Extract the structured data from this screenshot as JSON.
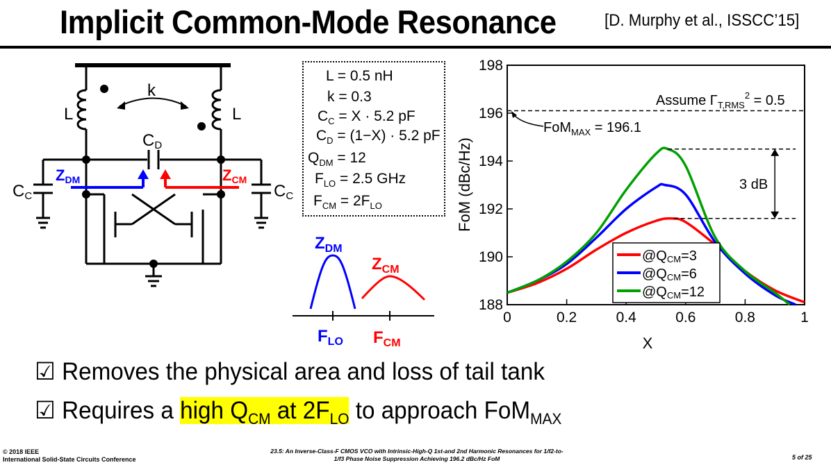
{
  "slide": {
    "title": "Implicit Common-Mode Resonance",
    "reference": "[D. Murphy et al., ISSCC’15]"
  },
  "circuit": {
    "inductor_left": "L",
    "inductor_right": "L",
    "coupling": "k",
    "cap_d": {
      "main": "C",
      "sub": "D"
    },
    "cap_left": {
      "main": "C",
      "sub": "C"
    },
    "cap_right": {
      "main": "C",
      "sub": "C"
    },
    "z_dm": {
      "main": "Z",
      "sub": "DM"
    },
    "z_cm": {
      "main": "Z",
      "sub": "CM"
    },
    "colors": {
      "dm": "#0000ff",
      "cm": "#ff0000"
    }
  },
  "params": {
    "l": "L = 0.5 nH",
    "k": "k = 0.3",
    "cc": {
      "pre": "C",
      "sub": "C",
      "post": " = X ·  5.2 pF"
    },
    "cd": {
      "pre": "C",
      "sub": "D",
      "post": " = (1−X) · 5.2 pF"
    },
    "qdm": {
      "pre": "Q",
      "sub": "DM",
      "post": " = 12"
    },
    "flo": {
      "pre": "F",
      "sub": "LO",
      "post": " = 2.5 GHz"
    },
    "fcm": {
      "pre": "F",
      "sub": "CM",
      "post": " = 2F",
      "sub2": "LO"
    }
  },
  "resonance_sketch": {
    "z_dm": {
      "main": "Z",
      "sub": "DM"
    },
    "z_cm": {
      "main": "Z",
      "sub": "CM"
    },
    "f_lo": {
      "main": "F",
      "sub": "LO"
    },
    "f_cm": {
      "main": "F",
      "sub": "CM"
    }
  },
  "chart_data": {
    "type": "line",
    "xlabel": "X",
    "ylabel": "FoM (dBc/Hz)",
    "xlim": [
      0,
      1
    ],
    "ylim": [
      188,
      198
    ],
    "x_ticks": [
      "0",
      "0.2",
      "0.4",
      "0.6",
      "0.8",
      "1"
    ],
    "y_ticks": [
      "188",
      "190",
      "192",
      "194",
      "196",
      "198"
    ],
    "grid": false,
    "legend_position": "bottom-center",
    "fom_max_line": {
      "y": 196.1
    },
    "annotation_assume": {
      "pre": "Assume Γ",
      "sub": "T,RMS",
      "sup": "2",
      "post": " = 0.5"
    },
    "annotation_fommax": {
      "pre": "FoM",
      "sub": "MAX",
      "post": " = 196.1"
    },
    "annotation_3db": "3 dB",
    "series": [
      {
        "name": "@QCM=3",
        "label_pre": "@Q",
        "label_sub": "CM",
        "label_post": "=3",
        "color": "#ff0000",
        "x": [
          0,
          0.1,
          0.2,
          0.3,
          0.4,
          0.5,
          0.55,
          0.6,
          0.7,
          0.8,
          0.9,
          1.0
        ],
        "y": [
          188.5,
          188.9,
          189.5,
          190.3,
          191.0,
          191.5,
          191.6,
          191.45,
          190.5,
          189.4,
          188.6,
          188.1
        ]
      },
      {
        "name": "@QCM=6",
        "label_pre": "@Q",
        "label_sub": "CM",
        "label_post": "=6",
        "color": "#0000ff",
        "x": [
          0,
          0.1,
          0.2,
          0.3,
          0.4,
          0.5,
          0.53,
          0.6,
          0.7,
          0.8,
          0.9,
          0.97
        ],
        "y": [
          188.5,
          189.0,
          189.7,
          190.8,
          192.0,
          192.9,
          193.0,
          192.6,
          190.6,
          189.3,
          188.4,
          188.0
        ]
      },
      {
        "name": "@QCM=12",
        "label_pre": "@Q",
        "label_sub": "CM",
        "label_post": "=12",
        "color": "#00a000",
        "x": [
          0,
          0.1,
          0.2,
          0.3,
          0.4,
          0.5,
          0.54,
          0.6,
          0.7,
          0.8,
          0.9,
          0.95
        ],
        "y": [
          188.5,
          189.0,
          189.8,
          191.0,
          192.8,
          194.3,
          194.5,
          193.8,
          190.8,
          189.4,
          188.5,
          188.0
        ]
      }
    ]
  },
  "bullets": {
    "checkbox": "☑",
    "b1": "Removes the physical area and loss of tail tank",
    "b2_pre": "Requires a ",
    "b2_hl_a": "high Q",
    "b2_hl_sub1": "CM",
    "b2_hl_b": " at 2F",
    "b2_hl_sub2": "LO",
    "b2_post": " to approach FoM",
    "b2_sub3": "MAX"
  },
  "footer": {
    "org_line1": "© 2018 IEEE",
    "org_line2": "International Solid-State Circuits Conference",
    "paper_line1": "23.5: An Inverse-Class-F CMOS VCO with Intrinsic-High-Q 1st-and 2nd Harmonic Resonances for 1/f2-to-",
    "paper_line2": "1/f3 Phase Noise Suppression Achieving 196.2 dBc/Hz FoM",
    "page": "5 of 25"
  }
}
